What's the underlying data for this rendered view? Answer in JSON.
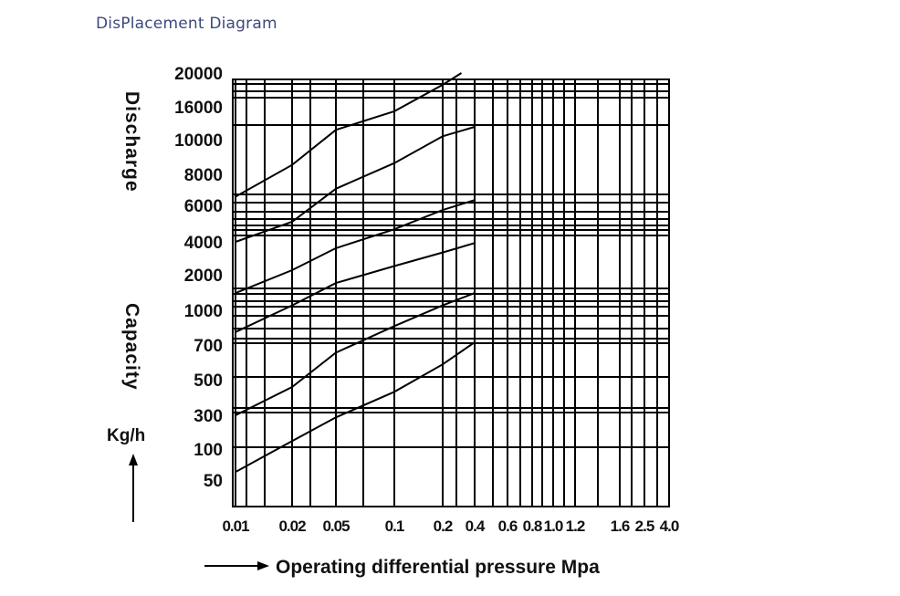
{
  "page": {
    "title": "DisPlacement Diagram"
  },
  "chart_data": {
    "type": "line",
    "title": "DisPlacement Diagram",
    "xlabel": "Operating differential pressure Mpa",
    "ylabel_top": "Discharge",
    "ylabel_mid": "Capacity",
    "ylabel_unit": "Kg/h",
    "x_scale": "log",
    "xlim": [
      0.01,
      4.0
    ],
    "grid": true,
    "x_ticks": [
      "0.01",
      "0.02",
      "0.05",
      "0.1",
      "0.2",
      "0.4",
      "0.6",
      "0.8",
      "1.0",
      "1.2",
      "1.6",
      "2.5",
      "4.0"
    ],
    "x_tick_values": [
      0.01,
      0.02,
      0.05,
      0.1,
      0.2,
      0.4,
      0.6,
      0.8,
      1.0,
      1.2,
      1.6,
      2.5,
      4.0
    ],
    "x_tick_display": [
      "0.01",
      "0.02",
      "0.05",
      "0.1",
      "0.2",
      "0.4",
      "0.6",
      "0.8",
      "1.0",
      "1.2",
      "1.6",
      "2.5",
      "4.0"
    ],
    "y_ticks": [
      "20000",
      "16000",
      "10000",
      "8000",
      "6000",
      "4000",
      "2000",
      "1000",
      "700",
      "500",
      "300",
      "100",
      "50"
    ],
    "y_scale": "categorical",
    "series": [
      {
        "points": [
          [
            0.01,
            6500
          ],
          [
            0.02,
            8500
          ],
          [
            0.05,
            11500
          ],
          [
            0.1,
            15000
          ],
          [
            0.2,
            18500
          ],
          [
            0.3,
            20000
          ]
        ]
      },
      {
        "points": [
          [
            0.01,
            4000
          ],
          [
            0.02,
            5000
          ],
          [
            0.05,
            7000
          ],
          [
            0.1,
            8600
          ],
          [
            0.2,
            10500
          ],
          [
            0.4,
            12000
          ]
        ]
      },
      {
        "points": [
          [
            0.01,
            1400
          ],
          [
            0.02,
            2200
          ],
          [
            0.05,
            3500
          ],
          [
            0.1,
            4600
          ],
          [
            0.2,
            5700
          ],
          [
            0.4,
            6300
          ]
        ]
      },
      {
        "points": [
          [
            0.01,
            800
          ],
          [
            0.02,
            1100
          ],
          [
            0.05,
            1700
          ],
          [
            0.1,
            2400
          ],
          [
            0.2,
            3200
          ],
          [
            0.4,
            3900
          ]
        ]
      },
      {
        "points": [
          [
            0.01,
            300
          ],
          [
            0.02,
            450
          ],
          [
            0.05,
            650
          ],
          [
            0.1,
            850
          ],
          [
            0.2,
            1100
          ],
          [
            0.4,
            1400
          ]
        ]
      },
      {
        "points": [
          [
            0.01,
            60
          ],
          [
            0.02,
            130
          ],
          [
            0.05,
            280
          ],
          [
            0.1,
            420
          ],
          [
            0.2,
            580
          ],
          [
            0.4,
            720
          ]
        ]
      }
    ]
  }
}
